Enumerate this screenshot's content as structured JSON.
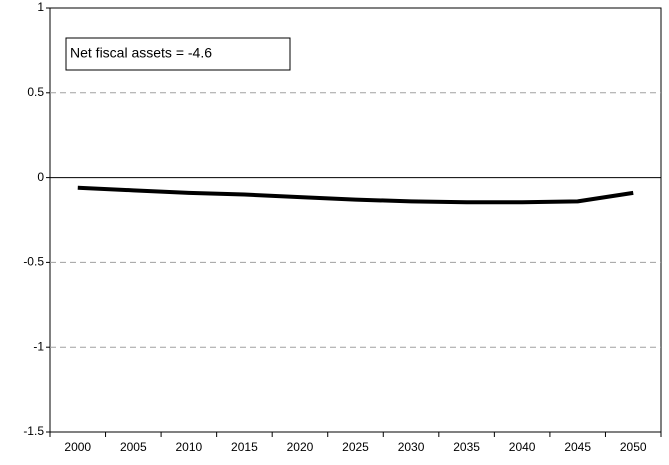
{
  "chart_data": {
    "type": "line",
    "title": "",
    "xlabel": "",
    "ylabel": "",
    "categories": [
      "2000",
      "2005",
      "2010",
      "2015",
      "2020",
      "2025",
      "2030",
      "2035",
      "2040",
      "2045",
      "2050"
    ],
    "series": [
      {
        "values": [
          -0.06,
          -0.075,
          -0.09,
          -0.1,
          -0.115,
          -0.13,
          -0.14,
          -0.145,
          -0.145,
          -0.14,
          -0.09
        ]
      }
    ],
    "ylim": [
      -1.5,
      1
    ],
    "yticks": [
      1,
      0.5,
      0,
      -0.5,
      -1,
      -1.5
    ],
    "ytick_labels": [
      "1",
      "0.5",
      "0",
      "-0.5",
      "-1",
      "-1.5"
    ],
    "grid": "horizontal dashed",
    "annotation": "Net fiscal assets = -4.6",
    "colors": {
      "line": "#000000",
      "grid": "#a0a0a0",
      "axis": "#000000"
    }
  }
}
